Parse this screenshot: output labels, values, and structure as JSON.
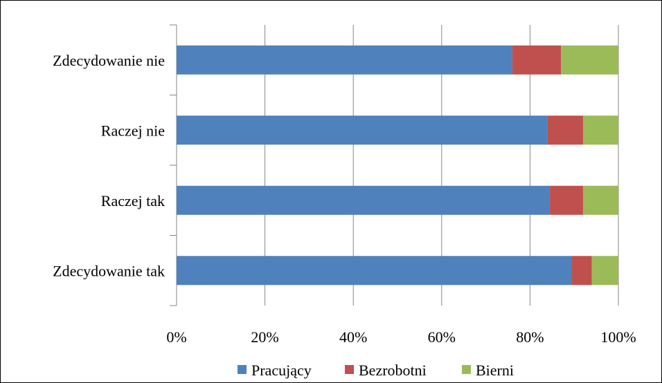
{
  "chart_data": {
    "type": "bar",
    "orientation": "horizontal",
    "stacked": "percent",
    "categories": [
      "Zdecydowanie nie",
      "Raczej nie",
      "Raczej tak",
      "Zdecydowanie tak"
    ],
    "series": [
      {
        "name": "Pracujący",
        "color": "#4F81BD",
        "values": [
          76,
          84,
          84.5,
          89.5
        ]
      },
      {
        "name": "Bezrobotni",
        "color": "#C0504D",
        "values": [
          11,
          8,
          7.5,
          4.5
        ]
      },
      {
        "name": "Bierni",
        "color": "#9BBB59",
        "values": [
          13,
          8,
          8,
          6
        ]
      }
    ],
    "x_ticks": [
      "0%",
      "20%",
      "40%",
      "60%",
      "80%",
      "100%"
    ],
    "xlim": [
      0,
      100
    ],
    "grid": "vertical",
    "legend_position": "bottom",
    "title": "",
    "xlabel": "",
    "ylabel": ""
  }
}
